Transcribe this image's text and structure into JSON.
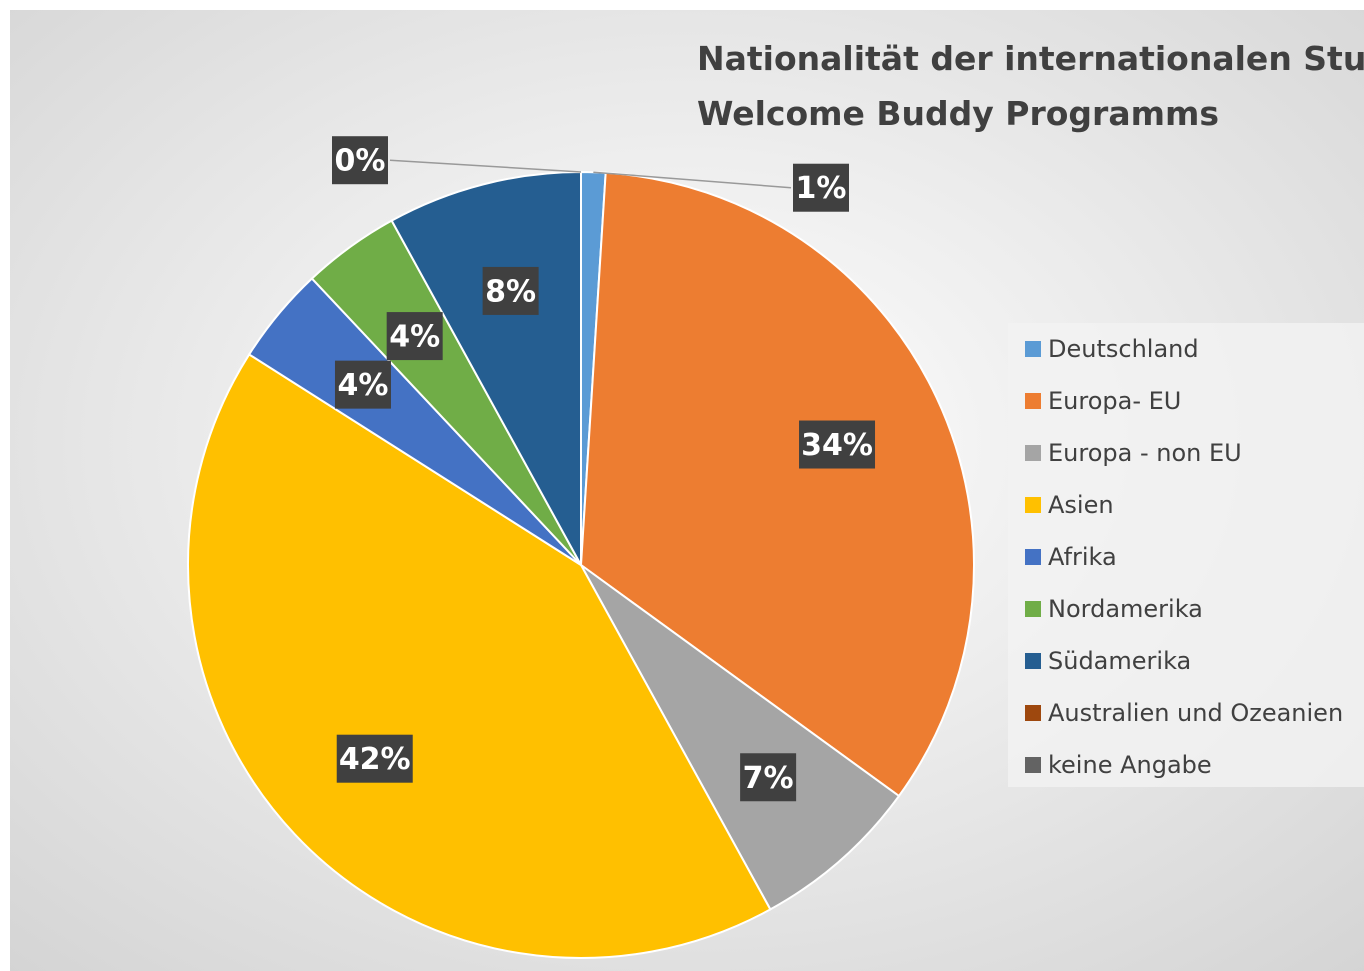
{
  "chart_data": {
    "type": "pie",
    "title": "Nationalität der internationalen Studierenden des Welcome Buddy Programms",
    "categories": [
      "Deutschland",
      "Europa- EU",
      "Europa - non EU",
      "Asien",
      "Afrika",
      "Nordamerika",
      "Südamerika",
      "Australien und Ozeanien",
      "keine Angabe"
    ],
    "values": [
      1,
      34,
      7,
      42,
      4,
      4,
      8,
      0,
      0
    ],
    "value_labels": [
      "1%",
      "34%",
      "7%",
      "42%",
      "4%",
      "4%",
      "8%",
      null,
      "0%"
    ],
    "colors": [
      "#5B9BD5",
      "#ED7D31",
      "#A5A5A5",
      "#FFC000",
      "#4472C4",
      "#70AD47",
      "#255E91",
      "#9E480E",
      "#636363"
    ],
    "legend": "right"
  }
}
